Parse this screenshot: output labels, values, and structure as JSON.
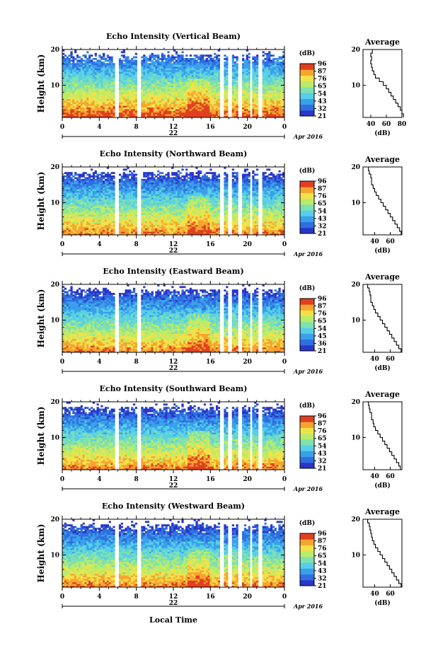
{
  "chart_data": [
    {
      "type": "heatmap",
      "title": "Echo Intensity (Vertical Beam)",
      "ylabel": "Height (km)",
      "ylim": [
        1,
        20
      ],
      "xlim": [
        0,
        24
      ],
      "x_ticks": [
        "0",
        "4",
        "8",
        "12",
        "16",
        "20",
        "0"
      ],
      "y_ticks": [
        "20",
        "10"
      ],
      "date_day": "22",
      "date_label": "Apr 2016",
      "colorbar": {
        "label": "(dB)",
        "ticks": [
          "96",
          "87",
          "76",
          "65",
          "54",
          "43",
          "32",
          "21"
        ]
      },
      "data_gaps_hours": [
        [
          5.6,
          6.0
        ],
        [
          8.1,
          8.6
        ],
        [
          17.0,
          17.4
        ],
        [
          18.0,
          18.4
        ],
        [
          19.0,
          19.4
        ],
        [
          20.2,
          20.6
        ],
        [
          21.2,
          21.6
        ]
      ],
      "average": {
        "title": "Average",
        "xlabel": "(dB)",
        "x_ticks": [
          "40",
          "60",
          "80"
        ],
        "xlim": [
          30,
          80
        ],
        "y_ticks": [
          "20",
          "10"
        ],
        "height_km": [
          1,
          2,
          3,
          4,
          5,
          6,
          7,
          8,
          9,
          10,
          11,
          12,
          13,
          14,
          15,
          16,
          17,
          18,
          19,
          20
        ],
        "db": [
          82,
          80,
          78,
          75,
          72,
          69,
          66,
          63,
          60,
          56,
          51,
          46,
          44,
          42,
          41,
          40,
          41,
          40,
          42,
          38
        ]
      }
    },
    {
      "type": "heatmap",
      "title": "Echo Intensity (Northward Beam)",
      "ylabel": "Height (km)",
      "ylim": [
        1,
        20
      ],
      "xlim": [
        0,
        24
      ],
      "x_ticks": [
        "0",
        "4",
        "8",
        "12",
        "16",
        "20",
        "0"
      ],
      "y_ticks": [
        "20",
        "10"
      ],
      "date_day": "22",
      "date_label": "Apr 2016",
      "colorbar": {
        "label": "(dB)",
        "ticks": [
          "96",
          "87",
          "76",
          "65",
          "54",
          "43",
          "32",
          "21"
        ]
      },
      "data_gaps_hours": [
        [
          5.6,
          6.0
        ],
        [
          8.1,
          8.6
        ],
        [
          17.0,
          17.4
        ],
        [
          18.0,
          18.4
        ],
        [
          19.0,
          19.4
        ],
        [
          20.2,
          20.6
        ],
        [
          21.2,
          21.6
        ]
      ],
      "average": {
        "title": "Average",
        "xlabel": "(dB)",
        "x_ticks": [
          "40",
          "60"
        ],
        "xlim": [
          25,
          75
        ],
        "y_ticks": [
          "20",
          "10"
        ],
        "height_km": [
          1,
          2,
          3,
          4,
          5,
          6,
          7,
          8,
          9,
          10,
          11,
          12,
          13,
          14,
          15,
          16,
          17,
          18,
          19,
          20
        ],
        "db": [
          74,
          72,
          69,
          66,
          63,
          60,
          57,
          54,
          51,
          48,
          45,
          42,
          40,
          38,
          36,
          36,
          35,
          33,
          32,
          30
        ]
      }
    },
    {
      "type": "heatmap",
      "title": "Echo Intensity (Eastward Beam)",
      "ylabel": "Height (km)",
      "ylim": [
        1,
        20
      ],
      "xlim": [
        0,
        24
      ],
      "x_ticks": [
        "0",
        "4",
        "8",
        "12",
        "16",
        "20",
        "0"
      ],
      "y_ticks": [
        "20",
        "10"
      ],
      "date_day": "22",
      "date_label": "Apr 2016",
      "colorbar": {
        "label": "(dB)",
        "ticks": [
          "96",
          "87",
          "76",
          "65",
          "54",
          "45",
          "36",
          "21"
        ]
      },
      "data_gaps_hours": [
        [
          5.6,
          6.0
        ],
        [
          8.1,
          8.6
        ],
        [
          17.0,
          17.4
        ],
        [
          18.0,
          18.4
        ],
        [
          19.0,
          19.4
        ],
        [
          20.2,
          20.6
        ],
        [
          21.2,
          21.6
        ]
      ],
      "average": {
        "title": "Average",
        "xlabel": "(dB)",
        "x_ticks": [
          "40",
          "60"
        ],
        "xlim": [
          25,
          75
        ],
        "y_ticks": [
          "20",
          "10"
        ],
        "height_km": [
          1,
          2,
          3,
          4,
          5,
          6,
          7,
          8,
          9,
          10,
          11,
          12,
          13,
          14,
          15,
          16,
          17,
          18,
          19,
          20
        ],
        "db": [
          74,
          71,
          68,
          65,
          62,
          59,
          56,
          53,
          50,
          47,
          44,
          41,
          39,
          37,
          35,
          35,
          34,
          33,
          31,
          29
        ]
      }
    },
    {
      "type": "heatmap",
      "title": "Echo Intensity (Southward Beam)",
      "ylabel": "Height (km)",
      "ylim": [
        1,
        20
      ],
      "xlim": [
        0,
        24
      ],
      "x_ticks": [
        "0",
        "4",
        "8",
        "12",
        "16",
        "20",
        "0"
      ],
      "y_ticks": [
        "20",
        "10"
      ],
      "date_day": "22",
      "date_label": "Apr 2016",
      "colorbar": {
        "label": "(dB)",
        "ticks": [
          "96",
          "87",
          "76",
          "65",
          "54",
          "43",
          "32",
          "21"
        ]
      },
      "data_gaps_hours": [
        [
          5.6,
          6.0
        ],
        [
          8.1,
          8.6
        ],
        [
          17.0,
          17.4
        ],
        [
          18.0,
          18.4
        ],
        [
          19.0,
          19.4
        ],
        [
          20.2,
          20.6
        ],
        [
          21.2,
          21.6
        ]
      ],
      "average": {
        "title": "Average",
        "xlabel": "(dB)",
        "x_ticks": [
          "40",
          "60"
        ],
        "xlim": [
          25,
          75
        ],
        "y_ticks": [
          "20",
          "10"
        ],
        "height_km": [
          1,
          2,
          3,
          4,
          5,
          6,
          7,
          8,
          9,
          10,
          11,
          12,
          13,
          14,
          15,
          16,
          17,
          18,
          19,
          20
        ],
        "db": [
          73,
          71,
          68,
          65,
          62,
          59,
          56,
          53,
          50,
          47,
          44,
          41,
          39,
          38,
          36,
          36,
          34,
          33,
          32,
          30
        ]
      }
    },
    {
      "type": "heatmap",
      "title": "Echo Intensity (Westward Beam)",
      "ylabel": "Height (km)",
      "ylim": [
        1,
        20
      ],
      "xlim": [
        0,
        24
      ],
      "x_ticks": [
        "0",
        "4",
        "8",
        "12",
        "16",
        "20",
        "0"
      ],
      "y_ticks": [
        "20",
        "10"
      ],
      "date_day": "22",
      "date_label": "Apr 2016",
      "colorbar": {
        "label": "(dB)",
        "ticks": [
          "96",
          "87",
          "76",
          "65",
          "54",
          "43",
          "32",
          "21"
        ]
      },
      "data_gaps_hours": [
        [
          5.6,
          6.0
        ],
        [
          8.1,
          8.6
        ],
        [
          17.0,
          17.4
        ],
        [
          18.0,
          18.4
        ],
        [
          19.0,
          19.4
        ],
        [
          20.2,
          20.6
        ],
        [
          21.2,
          21.6
        ]
      ],
      "average": {
        "title": "Average",
        "xlabel": "(dB)",
        "x_ticks": [
          "40",
          "60"
        ],
        "xlim": [
          25,
          75
        ],
        "y_ticks": [
          "20",
          "10"
        ],
        "height_km": [
          1,
          2,
          3,
          4,
          5,
          6,
          7,
          8,
          9,
          10,
          11,
          12,
          13,
          14,
          15,
          16,
          17,
          18,
          19,
          20
        ],
        "db": [
          74,
          71,
          68,
          65,
          62,
          59,
          56,
          53,
          50,
          47,
          44,
          41,
          39,
          37,
          36,
          35,
          34,
          33,
          31,
          30
        ]
      }
    }
  ],
  "xlabel": "Local Time",
  "colormap": [
    "#2a36c8",
    "#2f6fe0",
    "#3aa0ea",
    "#56cfe8",
    "#7fe0b0",
    "#b8ec6a",
    "#f2e24a",
    "#f7a52f",
    "#e04020"
  ]
}
